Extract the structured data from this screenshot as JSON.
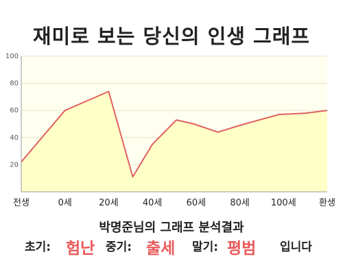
{
  "title": "재미로 보는 당신의 인생 그래프",
  "summary": "박명준님의 그래프 분석결과",
  "result": {
    "early_label": "초기:",
    "early_value": "험난",
    "middle_label": "중기:",
    "middle_value": "출세",
    "late_label": "말기:",
    "late_value": "평범",
    "suffix": "입니다"
  },
  "colors": {
    "line": "#e06060",
    "fill": "#ffffc8",
    "plot_bg": "#fffff0",
    "grid": "#e6e6c8",
    "highlight": "#e85a5a"
  },
  "chart_data": {
    "type": "area",
    "xlabel": "",
    "ylabel": "",
    "ylim": [
      0,
      100
    ],
    "yticks": [
      20,
      40,
      60,
      80,
      100
    ],
    "x_categories": [
      "전생",
      "0세",
      "20세",
      "40세",
      "60세",
      "80세",
      "100세",
      "환생"
    ],
    "grid": true,
    "series": [
      {
        "x": [
          0,
          1,
          2,
          2.55,
          3.0,
          3.55,
          3.95,
          4.5,
          5.0,
          5.9,
          6.5,
          7.0
        ],
        "values": [
          22,
          60,
          74,
          11,
          35,
          53,
          50,
          44,
          49,
          57,
          58,
          60
        ]
      }
    ]
  }
}
